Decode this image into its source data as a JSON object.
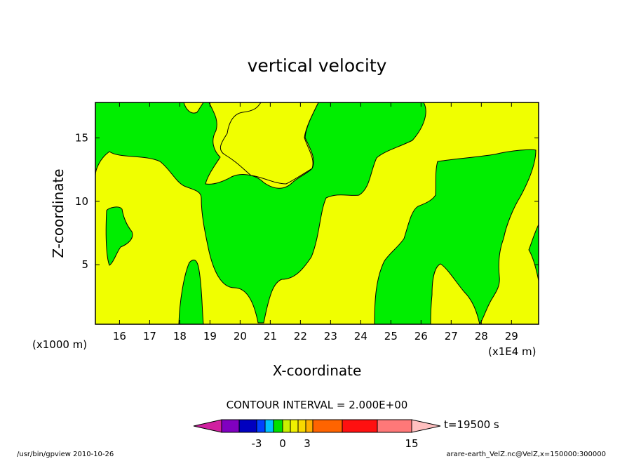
{
  "chart_data": {
    "type": "heatmap",
    "title": "vertical velocity",
    "xlabel": "X-coordinate",
    "ylabel": "Z-coordinate",
    "x_unit_left": "(x1000 m)",
    "x_unit_right": "(x1E4 m)",
    "xlim": [
      15.2,
      29.9
    ],
    "ylim": [
      0.3,
      17.8
    ],
    "xticks": [
      16,
      17,
      18,
      19,
      20,
      21,
      22,
      23,
      24,
      25,
      26,
      27,
      28,
      29
    ],
    "yticks": [
      5,
      10,
      15
    ],
    "contour_interval_label": "CONTOUR INTERVAL = 2.000E+00",
    "time_label": "t=19500 s",
    "colorbar_labels": [
      "-3",
      "0",
      "3",
      "15"
    ],
    "colorbar_colors": [
      "#d020a0",
      "#8000c0",
      "#0000c0",
      "#0040ff",
      "#00c0ff",
      "#00e000",
      "#c8f000",
      "#f0f000",
      "#f8d800",
      "#ffb000",
      "#ff6400",
      "#ff1010",
      "#ff7878",
      "#ffc0c0"
    ],
    "fill_colors": {
      "positive": "#00ee00",
      "near_zero": "#f0ff00"
    },
    "footer_left": "/usr/bin/gpview 2010-10-26",
    "footer_right": "arare-earth_VelZ.nc@VelZ,x=150000:300000"
  }
}
